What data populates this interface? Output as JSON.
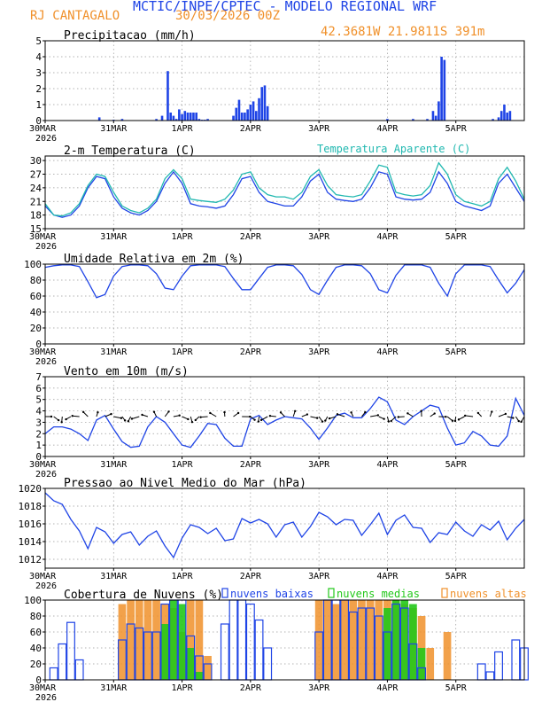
{
  "header": {
    "title": "MCTIC/INPE/CPTEC - MODELO REGIONAL WRF",
    "location": "RJ CANTAGALO",
    "run_date": "30/03/2026 00Z",
    "coords": "42.3681W 21.9811S 391m"
  },
  "colors": {
    "blue": "#1f44e6",
    "cyan": "#20b8b0",
    "orange": "#f0902a",
    "green": "#22c81a",
    "black": "#000000"
  },
  "x_axis": {
    "start_hour": 0,
    "end_hour": 168,
    "tick_labels": [
      "30MAR",
      "31MAR",
      "1APR",
      "2APR",
      "3APR",
      "4APR",
      "5APR"
    ],
    "tick_hours": [
      0,
      24,
      48,
      72,
      96,
      120,
      144
    ],
    "year_label": "2026"
  },
  "chart_data": [
    {
      "id": "precip",
      "type": "bar",
      "title": "Precipitacao (mm/h)",
      "ylim": [
        0,
        5
      ],
      "yticks": [
        0,
        1,
        2,
        3,
        4,
        5
      ],
      "series": [
        {
          "name": "precipitacao",
          "color": "blue",
          "x": [
            19,
            24,
            27,
            39,
            41,
            43,
            44,
            45,
            46,
            47,
            48,
            49,
            50,
            51,
            52,
            53,
            54,
            55,
            56,
            57,
            66,
            67,
            68,
            69,
            70,
            71,
            72,
            73,
            74,
            75,
            76,
            77,
            78,
            120,
            129,
            134,
            136,
            137,
            138,
            139,
            140,
            157,
            159,
            160,
            161,
            162,
            163
          ],
          "values": [
            0.2,
            0.05,
            0.1,
            0.1,
            0.3,
            3.1,
            0.5,
            0.3,
            0.1,
            0.7,
            0.4,
            0.6,
            0.5,
            0.5,
            0.5,
            0.5,
            0.1,
            0.05,
            0.05,
            0.1,
            0.3,
            0.8,
            1.3,
            0.5,
            0.5,
            0.7,
            1.0,
            1.2,
            0.6,
            1.4,
            2.1,
            2.2,
            0.9,
            0.1,
            0.1,
            0.1,
            0.6,
            0.3,
            1.2,
            4.0,
            3.8,
            0.1,
            0.2,
            0.6,
            1.0,
            0.5,
            0.6
          ]
        }
      ]
    },
    {
      "id": "temp",
      "type": "line",
      "title": "2-m Temperatura (C)",
      "legend": "Temperatura Aparente (C)",
      "ylim": [
        15,
        31
      ],
      "yticks": [
        15,
        18,
        21,
        24,
        27,
        30
      ],
      "x": [
        0,
        3,
        6,
        9,
        12,
        15,
        18,
        21,
        24,
        27,
        30,
        33,
        36,
        39,
        42,
        45,
        48,
        51,
        54,
        57,
        60,
        63,
        66,
        69,
        72,
        75,
        78,
        81,
        84,
        87,
        90,
        93,
        96,
        99,
        102,
        105,
        108,
        111,
        114,
        117,
        120,
        123,
        126,
        129,
        132,
        135,
        138,
        141,
        144,
        147,
        150,
        153,
        156,
        159,
        162,
        165,
        168
      ],
      "series": [
        {
          "name": "Temperatura 2m",
          "color": "blue",
          "values": [
            20,
            18,
            17.5,
            18,
            20,
            24,
            26.5,
            26,
            22,
            19.5,
            18.5,
            18,
            19,
            21,
            25,
            27.5,
            25,
            20.5,
            20,
            19.8,
            19.5,
            20,
            22.5,
            26,
            26.5,
            23,
            21,
            20.5,
            20,
            20,
            22,
            25.5,
            27,
            23,
            21.5,
            21.2,
            21,
            21.5,
            24,
            27.5,
            27,
            22,
            21.5,
            21.3,
            21.5,
            23,
            27.5,
            25,
            21,
            20,
            19.5,
            19,
            20,
            25,
            27,
            24,
            21
          ]
        },
        {
          "name": "Temperatura Aparente",
          "color": "cyan",
          "values": [
            20.5,
            18,
            17.8,
            18.5,
            20.5,
            24.5,
            27,
            26.5,
            23,
            20,
            19,
            18.5,
            19.5,
            21.5,
            26,
            28,
            26,
            21.5,
            21.2,
            21,
            20.8,
            21.5,
            23.5,
            27,
            27.5,
            24,
            22.5,
            22,
            22,
            21.5,
            23,
            26.5,
            28,
            24.5,
            22.5,
            22.2,
            22,
            22.5,
            25.5,
            29,
            28.5,
            23,
            22.5,
            22.2,
            22.5,
            24.5,
            29.5,
            27,
            22.5,
            21,
            20.5,
            20,
            21,
            26,
            28.5,
            25.5,
            21.5
          ]
        }
      ]
    },
    {
      "id": "rh",
      "type": "line",
      "title": "Umidade Relativa em 2m (%)",
      "ylim": [
        0,
        100
      ],
      "yticks": [
        0,
        20,
        40,
        60,
        80,
        100
      ],
      "x": [
        0,
        3,
        6,
        9,
        12,
        15,
        18,
        21,
        24,
        27,
        30,
        33,
        36,
        39,
        42,
        45,
        48,
        51,
        54,
        57,
        60,
        63,
        66,
        69,
        72,
        75,
        78,
        81,
        84,
        87,
        90,
        93,
        96,
        99,
        102,
        105,
        108,
        111,
        114,
        117,
        120,
        123,
        126,
        129,
        132,
        135,
        138,
        141,
        144,
        147,
        150,
        153,
        156,
        159,
        162,
        165,
        168
      ],
      "series": [
        {
          "name": "Umidade Relativa",
          "color": "blue",
          "values": [
            96,
            98,
            99,
            99,
            97,
            78,
            58,
            62,
            85,
            97,
            99,
            99,
            98,
            88,
            70,
            68,
            85,
            98,
            99,
            99,
            99,
            97,
            82,
            68,
            68,
            82,
            96,
            99,
            99,
            98,
            87,
            68,
            62,
            80,
            96,
            99,
            99,
            98,
            88,
            68,
            64,
            86,
            99,
            99,
            99,
            96,
            76,
            60,
            88,
            99,
            99,
            99,
            97,
            80,
            64,
            76,
            93
          ]
        }
      ]
    },
    {
      "id": "wind",
      "type": "line",
      "title": "Vento em 10m (m/s)",
      "ylim": [
        0,
        7
      ],
      "yticks": [
        0,
        1,
        2,
        3,
        4,
        5,
        6,
        7
      ],
      "x": [
        0,
        3,
        6,
        9,
        12,
        15,
        18,
        21,
        24,
        27,
        30,
        33,
        36,
        39,
        42,
        45,
        48,
        51,
        54,
        57,
        60,
        63,
        66,
        69,
        72,
        75,
        78,
        81,
        84,
        87,
        90,
        93,
        96,
        99,
        102,
        105,
        108,
        111,
        114,
        117,
        120,
        123,
        126,
        129,
        132,
        135,
        138,
        141,
        144,
        147,
        150,
        153,
        156,
        159,
        162,
        165,
        168
      ],
      "series": [
        {
          "name": "Velocidade do vento",
          "color": "blue",
          "values": [
            2,
            2.6,
            2.6,
            2.4,
            2,
            1.4,
            3.2,
            3.6,
            2.4,
            1.3,
            0.8,
            0.9,
            2.6,
            3.5,
            3,
            2,
            1,
            0.8,
            1.8,
            2.9,
            2.8,
            1.6,
            0.9,
            0.9,
            3.3,
            3.6,
            2.8,
            3.2,
            3.5,
            3.4,
            3.3,
            2.5,
            1.5,
            2.5,
            3.6,
            3.8,
            3.4,
            3.4,
            4.2,
            5.2,
            4.8,
            3.2,
            2.8,
            3.5,
            4,
            4.5,
            4.3,
            2.5,
            1,
            1.2,
            2.2,
            1.8,
            1,
            0.9,
            1.8,
            5.1,
            3.6
          ]
        }
      ],
      "barbs_baseline": 3.5
    },
    {
      "id": "pressure",
      "type": "line",
      "title": "Pressao ao Nivel Medio do Mar (hPa)",
      "ylim": [
        1011,
        1020
      ],
      "yticks": [
        1012,
        1014,
        1016,
        1018,
        1020
      ],
      "x": [
        0,
        3,
        6,
        9,
        12,
        15,
        18,
        21,
        24,
        27,
        30,
        33,
        36,
        39,
        42,
        45,
        48,
        51,
        54,
        57,
        60,
        63,
        66,
        69,
        72,
        75,
        78,
        81,
        84,
        87,
        90,
        93,
        96,
        99,
        102,
        105,
        108,
        111,
        114,
        117,
        120,
        123,
        126,
        129,
        132,
        135,
        138,
        141,
        144,
        147,
        150,
        153,
        156,
        159,
        162,
        165,
        168
      ],
      "series": [
        {
          "name": "Pressao",
          "color": "blue",
          "values": [
            1019.5,
            1018.6,
            1018.2,
            1016.5,
            1015.2,
            1013.2,
            1015.6,
            1015.1,
            1013.8,
            1014.8,
            1015.1,
            1013.6,
            1014.6,
            1015.2,
            1013.5,
            1012.2,
            1014.4,
            1015.9,
            1015.6,
            1014.9,
            1015.5,
            1014.1,
            1014.3,
            1016.6,
            1016.1,
            1016.5,
            1016,
            1014.5,
            1015.9,
            1016.2,
            1014.5,
            1015.7,
            1017.3,
            1016.8,
            1015.9,
            1016.5,
            1016.4,
            1014.7,
            1015.9,
            1017.2,
            1014.8,
            1016.4,
            1017,
            1015.6,
            1015.5,
            1013.9,
            1015,
            1014.8,
            1016.2,
            1015.2,
            1014.6,
            1015.9,
            1015.3,
            1016.3,
            1014.2,
            1015.5,
            1016.5
          ]
        }
      ]
    },
    {
      "id": "clouds",
      "type": "bar",
      "title": "Cobertura de Nuvens (%)",
      "ylim": [
        0,
        100
      ],
      "yticks": [
        0,
        20,
        40,
        60,
        80,
        100
      ],
      "legend": [
        "nuvens baixas",
        "nuvens medias",
        "nuvens altas"
      ],
      "x": [
        0,
        3,
        6,
        9,
        12,
        15,
        18,
        21,
        24,
        27,
        30,
        33,
        36,
        39,
        42,
        45,
        48,
        51,
        54,
        57,
        60,
        63,
        66,
        69,
        72,
        75,
        78,
        81,
        84,
        87,
        90,
        93,
        96,
        99,
        102,
        105,
        108,
        111,
        114,
        117,
        120,
        123,
        126,
        129,
        132,
        135,
        138,
        141,
        144,
        147,
        150,
        153,
        156,
        159,
        162,
        165,
        168
      ],
      "series": [
        {
          "name": "nuvens altas",
          "color": "orange",
          "values": [
            0,
            0,
            0,
            0,
            0,
            0,
            0,
            0,
            0,
            95,
            100,
            100,
            100,
            100,
            95,
            90,
            60,
            100,
            100,
            30,
            0,
            0,
            0,
            0,
            0,
            0,
            0,
            0,
            0,
            0,
            0,
            0,
            100,
            100,
            95,
            100,
            100,
            100,
            100,
            100,
            100,
            100,
            95,
            90,
            80,
            40,
            0,
            60,
            0,
            0,
            0,
            0,
            0,
            0,
            0,
            0,
            0
          ]
        },
        {
          "name": "nuvens medias",
          "color": "green",
          "values": [
            0,
            0,
            0,
            0,
            0,
            0,
            0,
            0,
            0,
            0,
            0,
            0,
            0,
            0,
            70,
            100,
            95,
            40,
            10,
            0,
            0,
            0,
            0,
            0,
            0,
            0,
            0,
            0,
            0,
            0,
            0,
            0,
            0,
            0,
            0,
            0,
            0,
            0,
            0,
            0,
            90,
            100,
            100,
            95,
            40,
            0,
            0,
            0,
            0,
            0,
            0,
            0,
            0,
            0,
            0,
            0,
            0
          ]
        },
        {
          "name": "nuvens baixas",
          "color": "blue",
          "values": [
            0,
            15,
            45,
            72,
            25,
            0,
            0,
            0,
            0,
            50,
            70,
            65,
            60,
            60,
            95,
            100,
            100,
            55,
            30,
            20,
            0,
            70,
            100,
            100,
            95,
            75,
            40,
            0,
            0,
            0,
            0,
            0,
            60,
            100,
            100,
            100,
            85,
            90,
            90,
            80,
            60,
            95,
            90,
            45,
            15,
            0,
            0,
            0,
            0,
            0,
            0,
            20,
            10,
            35,
            0,
            50,
            40
          ]
        }
      ]
    }
  ]
}
